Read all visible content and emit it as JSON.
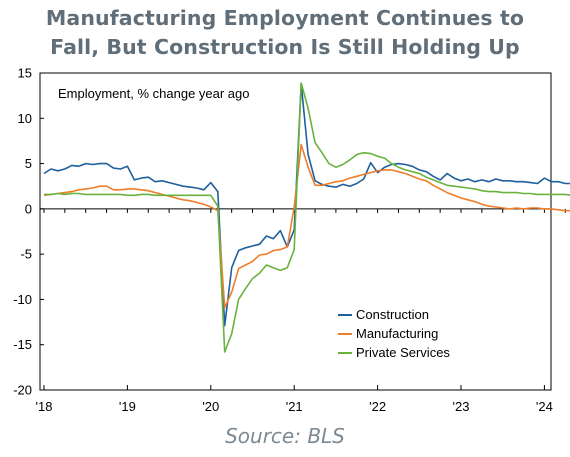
{
  "title_line1": "Manufacturing Employment Continues to",
  "title_line2": "Fall, But Construction Is Still Holding Up",
  "source": "Source: BLS",
  "chart_data": {
    "type": "line",
    "annotation": "Employment, % change year ago",
    "x_labels": [
      "'18",
      "'19",
      "'20",
      "'21",
      "'22",
      "'23",
      "'24"
    ],
    "y_ticks": [
      15,
      10,
      5,
      0,
      -5,
      -10,
      -15,
      -20
    ],
    "ylim": [
      -20,
      15
    ],
    "x_start": "2018-01",
    "grid": false,
    "legend_position": "lower-right",
    "series": [
      {
        "name": "Construction",
        "color": "#1f5f9e",
        "values": [
          3.9,
          4.4,
          4.2,
          4.4,
          4.8,
          4.7,
          5.0,
          4.9,
          5.0,
          5.0,
          4.5,
          4.4,
          4.7,
          3.2,
          3.4,
          3.5,
          3.0,
          3.1,
          2.9,
          2.7,
          2.5,
          2.4,
          2.3,
          2.1,
          2.9,
          1.9,
          -12.9,
          -6.5,
          -4.6,
          -4.3,
          -4.1,
          -3.9,
          -3.0,
          -3.3,
          -2.4,
          -4.2,
          -2.3,
          13.8,
          6.0,
          3.1,
          2.7,
          2.5,
          2.4,
          2.7,
          2.5,
          2.8,
          3.3,
          5.1,
          4.0,
          4.6,
          4.9,
          5.0,
          4.9,
          4.7,
          4.3,
          4.1,
          3.6,
          3.2,
          3.9,
          3.4,
          3.1,
          3.3,
          3.0,
          3.2,
          3.0,
          3.3,
          3.1,
          3.1,
          3.0,
          3.0,
          2.9,
          2.8,
          3.4,
          3.0,
          3.0,
          2.8,
          2.8,
          2.7,
          2.9,
          2.6,
          2.6
        ]
      },
      {
        "name": "Manufacturing",
        "color": "#ef7d2a",
        "values": [
          1.5,
          1.6,
          1.7,
          1.8,
          1.9,
          2.1,
          2.2,
          2.3,
          2.5,
          2.5,
          2.1,
          2.1,
          2.2,
          2.2,
          2.1,
          2.0,
          1.8,
          1.6,
          1.4,
          1.2,
          1.0,
          0.9,
          0.7,
          0.5,
          0.2,
          -0.2,
          -10.9,
          -9.2,
          -6.6,
          -6.2,
          -5.8,
          -5.1,
          -5.0,
          -4.6,
          -4.5,
          -4.2,
          0.2,
          7.1,
          4.6,
          2.6,
          2.6,
          2.8,
          3.0,
          3.1,
          3.4,
          3.6,
          3.8,
          4.0,
          4.2,
          4.3,
          4.3,
          4.1,
          3.9,
          3.6,
          3.3,
          3.1,
          2.6,
          2.2,
          1.8,
          1.5,
          1.2,
          1.0,
          0.8,
          0.5,
          0.3,
          0.2,
          0.1,
          0.0,
          0.1,
          0.0,
          0.1,
          0.1,
          0.0,
          0.0,
          -0.1,
          -0.2,
          -0.2,
          -0.3,
          -0.3,
          -0.4,
          -0.5
        ]
      },
      {
        "name": "Private Services",
        "color": "#6ab23e",
        "values": [
          1.6,
          1.6,
          1.7,
          1.6,
          1.7,
          1.7,
          1.6,
          1.6,
          1.6,
          1.6,
          1.6,
          1.6,
          1.5,
          1.5,
          1.6,
          1.6,
          1.5,
          1.5,
          1.5,
          1.5,
          1.5,
          1.5,
          1.5,
          1.5,
          1.5,
          0.3,
          -15.8,
          -13.8,
          -10.0,
          -8.8,
          -7.7,
          -7.1,
          -6.2,
          -6.5,
          -6.8,
          -6.5,
          -4.5,
          13.9,
          11.1,
          7.3,
          6.2,
          5.0,
          4.6,
          4.9,
          5.4,
          6.0,
          6.2,
          6.1,
          5.8,
          5.6,
          5.0,
          4.6,
          4.3,
          4.1,
          3.9,
          3.5,
          3.2,
          2.9,
          2.6,
          2.5,
          2.4,
          2.3,
          2.2,
          2.0,
          1.9,
          1.9,
          1.8,
          1.8,
          1.8,
          1.7,
          1.7,
          1.6,
          1.6,
          1.6,
          1.6,
          1.6,
          1.5,
          1.5,
          1.5,
          1.5,
          1.5
        ]
      }
    ]
  }
}
